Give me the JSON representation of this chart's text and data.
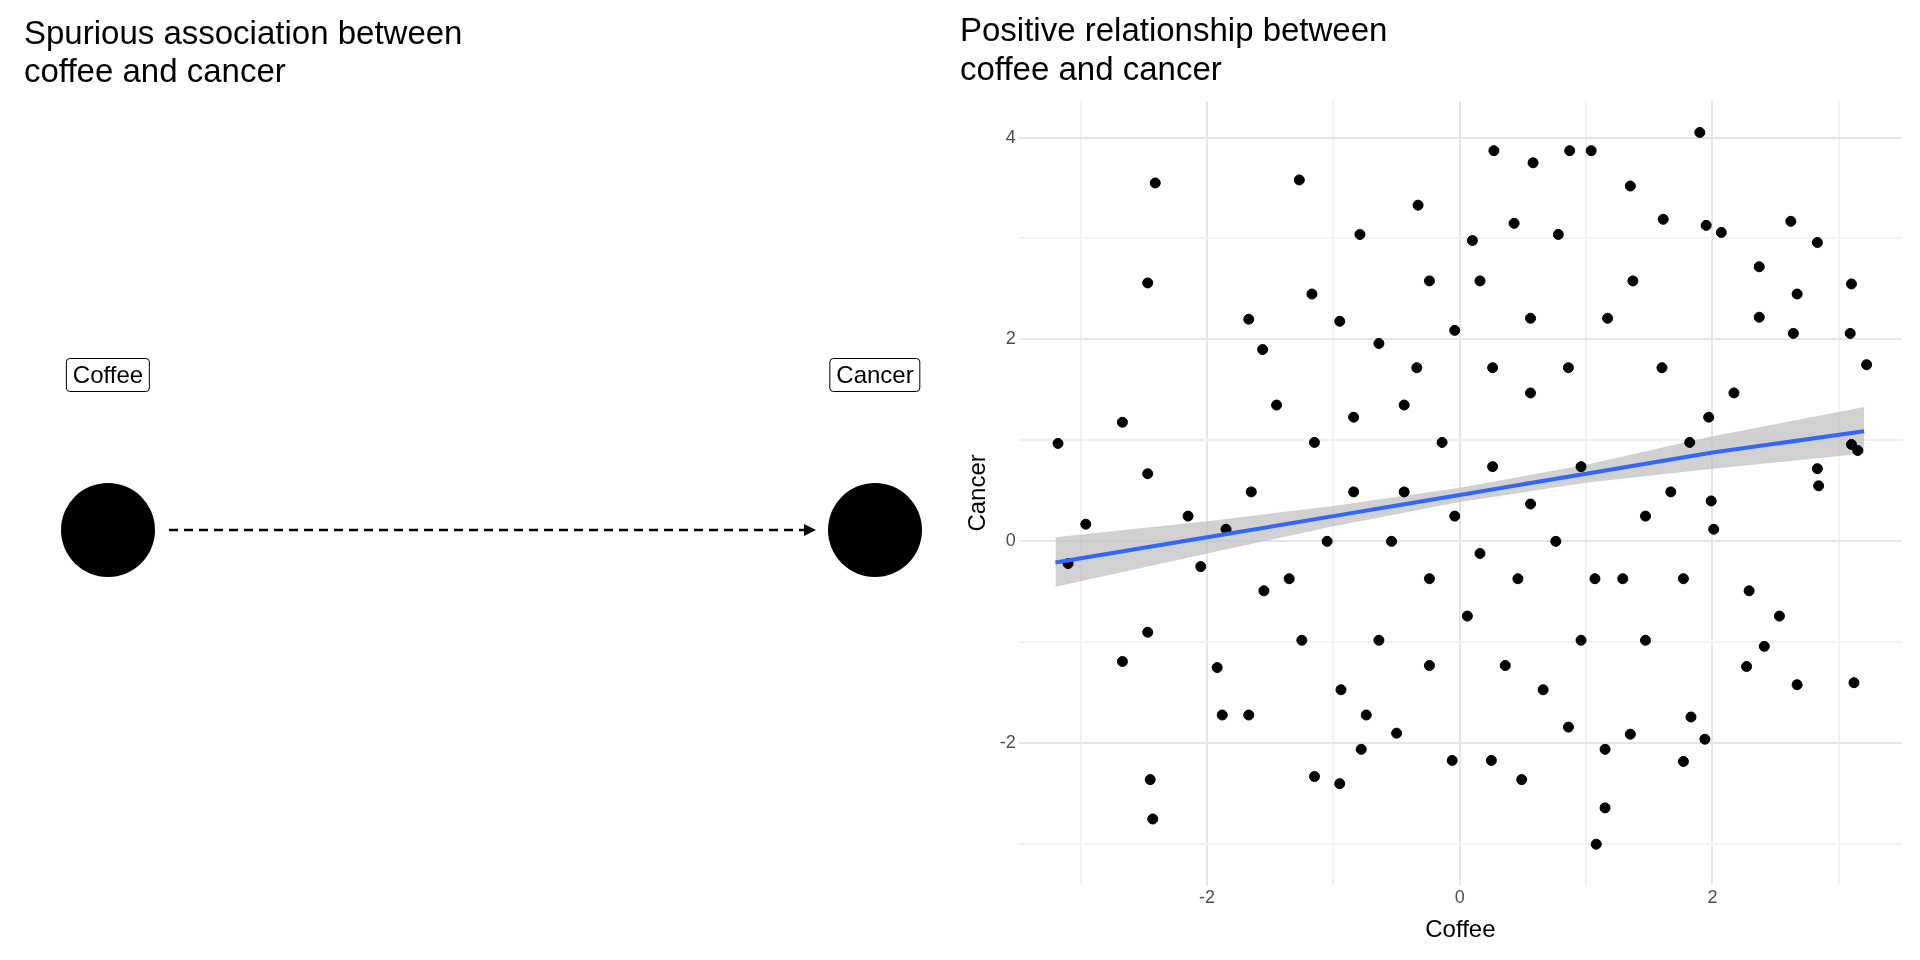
{
  "chart_data": [
    {
      "type": "other",
      "title": "Spurious association between coffee and cancer",
      "annotations": [
        "Coffee",
        "Cancer"
      ]
    },
    {
      "type": "scatter",
      "title": "Positive relationship between coffee and cancer",
      "xlabel": "Coffee",
      "ylabel": "Cancer",
      "xlim": [
        -3.49,
        3.5
      ],
      "ylim": [
        -3.4,
        4.36
      ],
      "xticks": [
        {
          "value": -3,
          "label": null
        },
        -2,
        {
          "value": -1,
          "label": null
        },
        0,
        {
          "value": 1,
          "label": null
        },
        2,
        {
          "value": 3,
          "label": null
        }
      ],
      "yticks": [
        {
          "value": -3,
          "label": null
        },
        -2,
        {
          "value": -1,
          "label": null
        },
        0,
        {
          "value": 1,
          "label": null
        },
        2,
        {
          "value": 3,
          "label": null
        },
        4
      ],
      "grid": true,
      "series": [
        {
          "type": "scatter",
          "color": "#000000",
          "marker": "circle",
          "x": [
            -3.18,
            -2.96,
            -3.1,
            -2.67,
            -2.41,
            -2.47,
            -2.67,
            -2.47,
            -2.47,
            -2.45,
            -2.43,
            -1.27,
            -1.67,
            -1.56,
            -1.92,
            -1.88,
            -1.67,
            -1.15,
            -0.95,
            -0.78,
            -0.5,
            -0.06,
            0.25,
            0.49,
            1.15,
            1.35,
            1.15,
            1.08,
            1.77,
            1.94,
            1.83,
            2.27,
            2.41,
            2.67,
            3.12,
            1.9,
            3.1,
            3.09,
            3.22,
            2.62,
            2.83,
            2.37,
            1.95,
            2.07,
            1.61,
            1.35,
            0.87,
            1.04,
            0.58,
            0.27,
            -0.33,
            -0.79,
            0.43,
            0.78,
            0.1,
            -1.17,
            -0.95,
            2.67,
            2.64,
            2.37,
            2.83,
            2.84,
            3.1,
            3.15,
            2.53,
            2.29,
            1.99,
            2.01,
            1.97,
            1.82,
            1.6,
            1.47,
            1.29,
            0.96,
            0.66,
            0.36,
            0.06,
            -0.24,
            -0.54,
            -0.84,
            -1.15,
            -1.45,
            -1.65,
            -1.85,
            -2.05,
            -2.15,
            -1.55,
            -1.25,
            -0.94,
            -0.64,
            -0.34,
            -0.04,
            0.26,
            0.56,
            0.86,
            1.17,
            1.37,
            0.96,
            0.56,
            0.26,
            -0.14,
            -0.44,
            -0.64,
            -0.84,
            -0.04,
            0.16,
            0.46,
            0.76,
            1.07,
            1.47,
            1.77,
            -0.44,
            -1.05,
            -1.35,
            -0.74,
            -0.24,
            0.86,
            2.17,
            1.67,
            0.56,
            -0.24,
            0.16
          ],
          "values": [
            0.97,
            0.17,
            -0.22,
            1.18,
            3.55,
            2.56,
            -1.19,
            0.67,
            -0.9,
            -2.36,
            -2.75,
            3.58,
            2.2,
            1.9,
            -1.25,
            -1.72,
            -1.72,
            -2.33,
            -2.4,
            -2.06,
            -1.9,
            -2.17,
            -2.17,
            -2.36,
            -2.06,
            -1.91,
            -2.64,
            -3.0,
            -2.18,
            -1.96,
            -1.74,
            -1.24,
            -1.04,
            -1.42,
            -1.4,
            4.05,
            2.55,
            2.06,
            1.75,
            3.17,
            2.96,
            2.72,
            3.13,
            3.06,
            3.19,
            3.52,
            3.87,
            3.87,
            3.75,
            3.87,
            3.33,
            3.04,
            3.15,
            3.04,
            2.98,
            2.45,
            2.18,
            2.45,
            2.06,
            2.22,
            0.72,
            0.55,
            0.96,
            0.9,
            -0.74,
            -0.49,
            0.4,
            0.12,
            1.23,
            0.98,
            1.72,
            0.25,
            -0.37,
            -0.98,
            -1.47,
            -1.23,
            -0.74,
            -0.37,
            0,
            0.49,
            0.98,
            1.35,
            0.49,
            0.12,
            -0.25,
            0.25,
            -0.49,
            -0.98,
            -1.47,
            -0.98,
            1.72,
            2.09,
            1.72,
            2.21,
            1.72,
            2.21,
            2.58,
            0.74,
            0.37,
            0.74,
            0.98,
            1.35,
            1.96,
            1.23,
            0.25,
            -0.12,
            -0.37,
            0,
            -0.37,
            -0.98,
            -0.37,
            0.49,
            0,
            -0.37,
            -1.72,
            -1.23,
            -1.84,
            1.47,
            0.49,
            1.47,
            2.58,
            2.58
          ]
        },
        {
          "type": "line",
          "color": "#3366ff",
          "x": [
            -3.2,
            -2,
            -1,
            0,
            1,
            2,
            3.2
          ],
          "values": [
            -0.21,
            0.04,
            0.25,
            0.46,
            0.67,
            0.88,
            1.09
          ],
          "lower": [
            -0.45,
            -0.12,
            0.15,
            0.39,
            0.58,
            0.72,
            0.87
          ],
          "upper": [
            0.04,
            0.2,
            0.35,
            0.53,
            0.76,
            1.04,
            1.33
          ]
        }
      ]
    }
  ]
}
